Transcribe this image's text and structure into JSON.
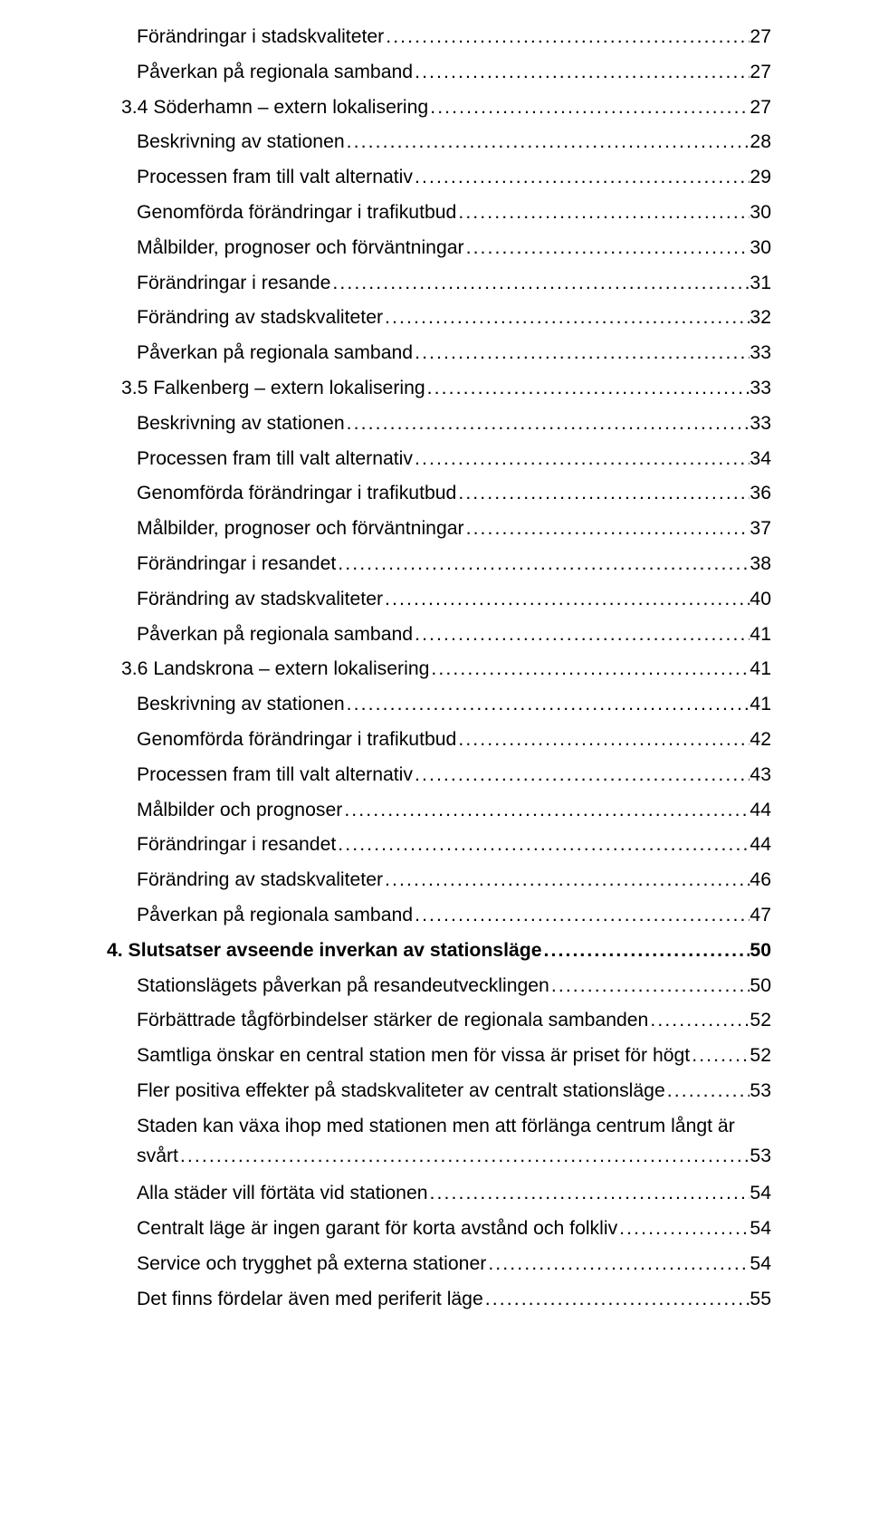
{
  "entries": [
    {
      "level": "sub",
      "text": "Förändringar i stadskvaliteter",
      "page": "27"
    },
    {
      "level": "sub",
      "text": "Påverkan på regionala samband",
      "page": "27"
    },
    {
      "level": "section",
      "text": "3.4 Söderhamn – extern lokalisering",
      "page": "27"
    },
    {
      "level": "sub",
      "text": "Beskrivning av stationen",
      "page": "28"
    },
    {
      "level": "sub",
      "text": "Processen fram till valt alternativ",
      "page": "29"
    },
    {
      "level": "sub",
      "text": "Genomförda förändringar i trafikutbud",
      "page": "30"
    },
    {
      "level": "sub",
      "text": "Målbilder, prognoser och förväntningar",
      "page": "30"
    },
    {
      "level": "sub",
      "text": "Förändringar i resande",
      "page": "31"
    },
    {
      "level": "sub",
      "text": "Förändring av stadskvaliteter",
      "page": "32"
    },
    {
      "level": "sub",
      "text": "Påverkan på regionala samband",
      "page": "33"
    },
    {
      "level": "section",
      "text": "3.5 Falkenberg – extern lokalisering",
      "page": "33"
    },
    {
      "level": "sub",
      "text": "Beskrivning av stationen",
      "page": "33"
    },
    {
      "level": "sub",
      "text": "Processen fram till valt alternativ",
      "page": "34"
    },
    {
      "level": "sub",
      "text": "Genomförda förändringar i trafikutbud",
      "page": "36"
    },
    {
      "level": "sub",
      "text": "Målbilder, prognoser och förväntningar",
      "page": "37"
    },
    {
      "level": "sub",
      "text": "Förändringar i resandet",
      "page": "38"
    },
    {
      "level": "sub",
      "text": "Förändring av stadskvaliteter",
      "page": "40"
    },
    {
      "level": "sub",
      "text": "Påverkan på regionala samband",
      "page": "41"
    },
    {
      "level": "section",
      "text": "3.6 Landskrona – extern lokalisering",
      "page": "41"
    },
    {
      "level": "sub",
      "text": "Beskrivning av stationen",
      "page": "41"
    },
    {
      "level": "sub",
      "text": "Genomförda förändringar i trafikutbud",
      "page": "42"
    },
    {
      "level": "sub",
      "text": "Processen fram till valt alternativ",
      "page": "43"
    },
    {
      "level": "sub",
      "text": "Målbilder och prognoser",
      "page": "44"
    },
    {
      "level": "sub",
      "text": "Förändringar i resandet",
      "page": "44"
    },
    {
      "level": "sub",
      "text": "Förändring av stadskvaliteter",
      "page": "46"
    },
    {
      "level": "sub",
      "text": "Påverkan på regionala samband",
      "page": "47"
    },
    {
      "level": "chapter",
      "text": "4. Slutsatser avseende inverkan av stationsläge",
      "page": "50"
    },
    {
      "level": "sub",
      "text": "Stationslägets påverkan på resandeutvecklingen",
      "page": "50"
    },
    {
      "level": "sub",
      "text": "Förbättrade tågförbindelser stärker de regionala sambanden",
      "page": "52"
    },
    {
      "level": "sub",
      "text": "Samtliga önskar en central station men för vissa är priset för högt",
      "page": "52"
    },
    {
      "level": "sub",
      "text": "Fler positiva effekter på stadskvaliteter av centralt stationsläge",
      "page": "53"
    },
    {
      "level": "wrap",
      "text1": "Staden kan växa ihop med stationen men att förlänga centrum långt är",
      "text2": "svårt",
      "page": "53"
    },
    {
      "level": "sub",
      "text": "Alla städer vill förtäta vid stationen",
      "page": "54"
    },
    {
      "level": "sub",
      "text": "Centralt läge är ingen garant för korta avstånd och folkliv",
      "page": "54"
    },
    {
      "level": "sub",
      "text": "Service och trygghet på externa stationer",
      "page": "54"
    },
    {
      "level": "sub",
      "text": "Det finns fördelar även med periferit läge",
      "page": "55"
    }
  ]
}
